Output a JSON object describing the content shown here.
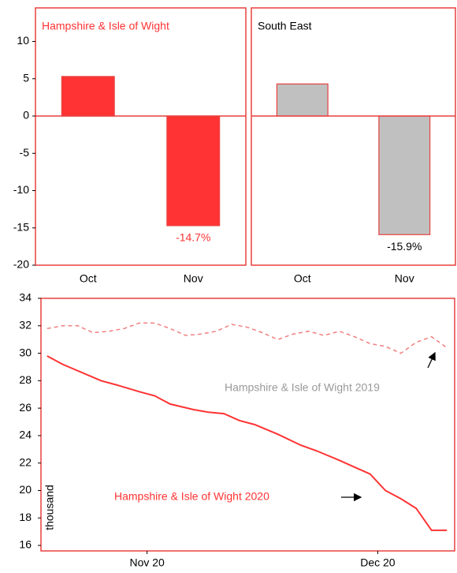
{
  "chart_data": [
    {
      "type": "bar",
      "title": "Hampshire & Isle of Wight",
      "title_color": "#ff3333",
      "categories": [
        "Oct",
        "Nov"
      ],
      "values": [
        5.3,
        -14.7
      ],
      "value_labels": [
        null,
        "-14.7%"
      ],
      "value_label_color": "#ff3333",
      "color": "#ff3333",
      "border_color": "#e8403f",
      "ylim": [
        -20,
        14.5
      ],
      "yticks": [
        -20,
        -15,
        -10,
        -5,
        0,
        5,
        10
      ]
    },
    {
      "type": "bar",
      "title": "South East",
      "title_color": "#000000",
      "categories": [
        "Oct",
        "Nov"
      ],
      "values": [
        4.3,
        -15.9
      ],
      "value_labels": [
        null,
        "-15.9%"
      ],
      "value_label_color": "#000000",
      "color": "#c0c0c0",
      "border_color": "#e8403f",
      "ylim": [
        -20,
        14.5
      ]
    },
    {
      "type": "line",
      "ylabel": "thousand",
      "xlim": [
        -0.8,
        53
      ],
      "xticks": [
        {
          "value": 13,
          "label": "Nov 20"
        },
        {
          "value": 43,
          "label": "Dec 20"
        }
      ],
      "ylim": [
        15.6,
        34
      ],
      "yticks": [
        16,
        18,
        20,
        22,
        24,
        26,
        28,
        30,
        32,
        34
      ],
      "series": [
        {
          "name": "Hampshire & Isle of Wight 2019",
          "color": "#f08080",
          "dashed": true,
          "label_color": "#999999",
          "x": [
            0,
            2,
            4,
            6,
            8,
            10,
            12,
            14,
            16,
            18,
            20,
            22,
            24,
            26,
            28,
            30,
            32,
            34,
            36,
            38,
            40,
            42,
            44,
            46,
            48,
            50,
            52
          ],
          "values": [
            31.8,
            32.0,
            32.0,
            31.5,
            31.6,
            31.8,
            32.2,
            32.2,
            31.8,
            31.3,
            31.4,
            31.6,
            32.1,
            31.9,
            31.5,
            31.0,
            31.4,
            31.6,
            31.3,
            31.6,
            31.2,
            30.7,
            30.5,
            30.0,
            30.8,
            31.2,
            30.4
          ]
        },
        {
          "name": "Hampshire & Isle of Wight 2020",
          "color": "#ff3333",
          "dashed": false,
          "label_color": "#ff3333",
          "x": [
            0,
            2,
            7,
            9,
            12,
            14,
            16,
            19,
            21,
            23,
            25,
            27,
            30,
            33,
            35,
            38,
            40,
            42,
            44,
            46,
            48,
            50,
            52
          ],
          "values": [
            29.8,
            29.2,
            28.0,
            27.7,
            27.2,
            26.9,
            26.3,
            25.9,
            25.7,
            25.6,
            25.1,
            24.8,
            24.1,
            23.3,
            22.9,
            22.2,
            21.7,
            21.2,
            20.0,
            19.4,
            18.7,
            17.1,
            17.1
          ]
        }
      ]
    }
  ]
}
